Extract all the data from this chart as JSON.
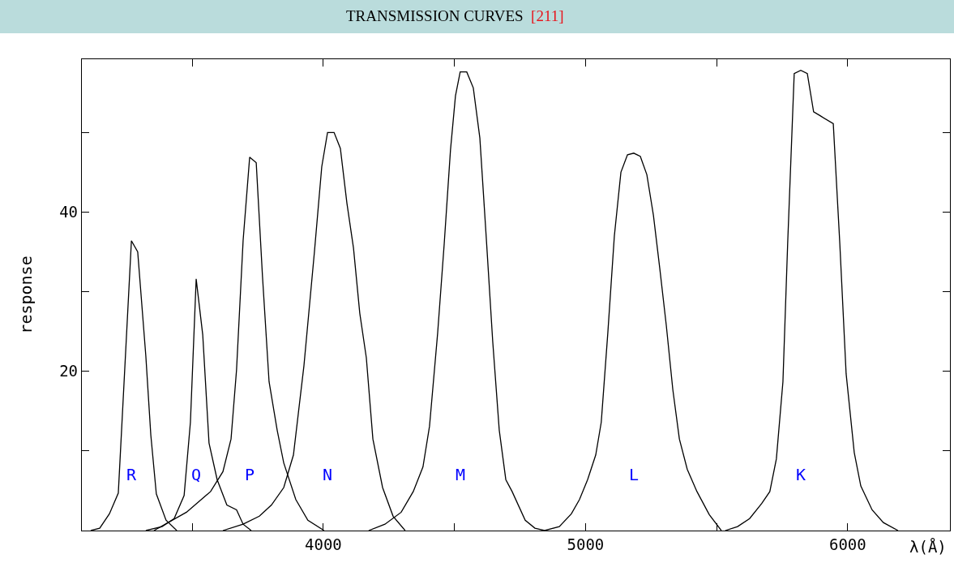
{
  "chart_data": {
    "type": "line",
    "title": "TRANSMISSION CURVES  [211]",
    "xlabel": "λ(Å)",
    "ylabel": "response",
    "xlim": [
      3079,
      6390
    ],
    "ylim": [
      0,
      59.2
    ],
    "xticks": [
      {
        "value": 3500,
        "label": null
      },
      4000,
      {
        "value": 4500,
        "label": null
      },
      5000,
      {
        "value": 5500,
        "label": null
      },
      6000
    ],
    "yticks": [
      {
        "value": 10,
        "label": null
      },
      20,
      {
        "value": 30,
        "label": null
      },
      40,
      {
        "value": 50,
        "label": null
      }
    ],
    "legend": false,
    "marker": "none",
    "line_style": "solid",
    "series": [
      {
        "name": "R",
        "color": "#000000",
        "x": [
          3113,
          3147,
          3184,
          3218,
          3268,
          3292,
          3323,
          3342,
          3363,
          3400,
          3441
        ],
        "values": [
          0,
          0.3,
          2.1,
          4.7,
          36.4,
          35,
          21.9,
          12,
          4.6,
          1.3,
          0
        ]
      },
      {
        "name": "Q",
        "color": "#000000",
        "x": [
          3323,
          3385,
          3431,
          3469,
          3493,
          3515,
          3540,
          3564,
          3595,
          3632,
          3669,
          3694,
          3725
        ],
        "values": [
          0,
          0.5,
          1.5,
          4.4,
          13.6,
          31.6,
          24.6,
          11,
          6.4,
          3.2,
          2.6,
          0.8,
          0
        ]
      },
      {
        "name": "P",
        "color": "#000000",
        "x": [
          3354,
          3478,
          3570,
          3617,
          3648,
          3669,
          3694,
          3719,
          3744,
          3768,
          3793,
          3824,
          3849,
          3895,
          3941,
          4003
        ],
        "values": [
          0,
          2.3,
          4.9,
          7.4,
          11.5,
          20.2,
          36.4,
          46.9,
          46.2,
          31.9,
          18.7,
          12.6,
          8.5,
          3.9,
          1.3,
          0
        ]
      },
      {
        "name": "N",
        "color": "#000000",
        "x": [
          3617,
          3694,
          3756,
          3802,
          3849,
          3886,
          3926,
          3966,
          3994,
          4016,
          4041,
          4065,
          4090,
          4115,
          4139,
          4164,
          4189,
          4226,
          4266,
          4312
        ],
        "values": [
          0,
          0.8,
          1.8,
          3.2,
          5.4,
          9.5,
          20.7,
          35,
          45.7,
          50,
          50,
          48,
          41.1,
          35.5,
          27.3,
          21.7,
          11.5,
          5.4,
          1.8,
          0
        ]
      },
      {
        "name": "M",
        "color": "#000000",
        "x": [
          4173,
          4235,
          4297,
          4343,
          4380,
          4405,
          4436,
          4461,
          4485,
          4504,
          4522,
          4547,
          4572,
          4597,
          4621,
          4646,
          4671,
          4696,
          4720,
          4770,
          4807,
          4844
        ],
        "values": [
          0,
          0.8,
          2.3,
          4.9,
          8,
          13.1,
          24.8,
          36,
          47.8,
          54.6,
          57.6,
          57.6,
          55.6,
          49.3,
          37,
          23.8,
          12.6,
          6.4,
          4.9,
          1.3,
          0.3,
          0
        ]
      },
      {
        "name": "L",
        "color": "#000000",
        "x": [
          4844,
          4900,
          4946,
          4977,
          5008,
          5039,
          5060,
          5085,
          5110,
          5135,
          5160,
          5184,
          5209,
          5234,
          5259,
          5283,
          5308,
          5333,
          5358,
          5388,
          5425,
          5472,
          5518
        ],
        "values": [
          0,
          0.5,
          2.1,
          3.9,
          6.4,
          9.5,
          13.6,
          24.8,
          37,
          45,
          47.2,
          47.4,
          47,
          44.7,
          39.6,
          33,
          25.8,
          17.7,
          11.5,
          7.7,
          4.9,
          2,
          0
        ]
      },
      {
        "name": "K",
        "color": "#000000",
        "x": [
          5533,
          5580,
          5626,
          5672,
          5703,
          5728,
          5753,
          5771,
          5796,
          5821,
          5846,
          5870,
          5895,
          5945,
          5970,
          5994,
          6025,
          6050,
          6093,
          6136,
          6192
        ],
        "values": [
          0,
          0.5,
          1.5,
          3.4,
          4.9,
          9,
          18.7,
          36,
          57.4,
          57.8,
          57.4,
          52.6,
          52.1,
          51.1,
          36,
          19.7,
          9.8,
          5.6,
          2.6,
          1,
          0
        ]
      }
    ]
  }
}
